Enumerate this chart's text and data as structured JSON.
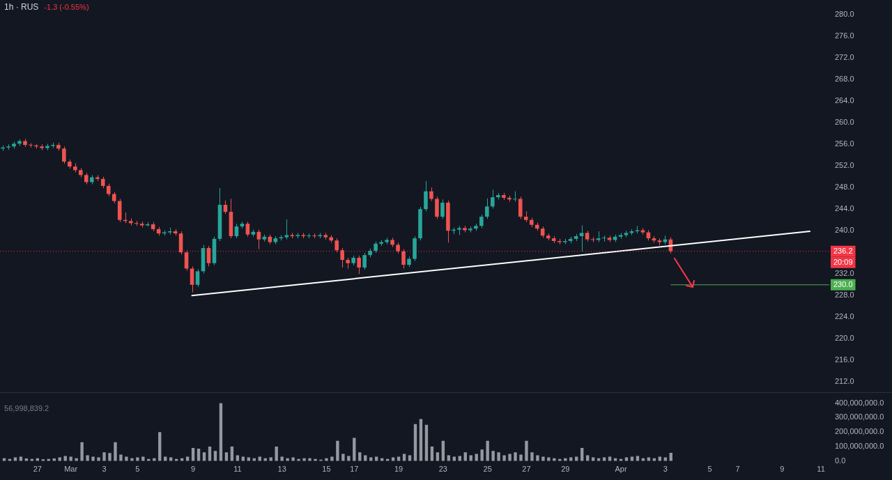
{
  "chart_data": [
    {
      "type": "candlestick",
      "title": "1h · RUS",
      "subtitle": "-1.3 (-0.55%)",
      "ohlc": [
        [
          255.2,
          255.8,
          254.8,
          255.4
        ],
        [
          255.4,
          256.0,
          255.0,
          255.6
        ],
        [
          255.6,
          256.5,
          255.2,
          256.1
        ],
        [
          256.1,
          256.9,
          255.7,
          256.6
        ],
        [
          256.6,
          257.0,
          255.5,
          255.9
        ],
        [
          255.9,
          256.2,
          255.4,
          255.8
        ],
        [
          255.8,
          256.0,
          255.2,
          255.6
        ],
        [
          255.6,
          256.0,
          254.9,
          255.3
        ],
        [
          255.3,
          256.1,
          254.9,
          255.7
        ],
        [
          255.7,
          256.3,
          255.3,
          255.9
        ],
        [
          255.9,
          256.3,
          254.8,
          255.2
        ],
        [
          255.2,
          255.6,
          252.4,
          252.8
        ],
        [
          252.8,
          253.2,
          251.5,
          251.9
        ],
        [
          251.9,
          252.5,
          250.8,
          251.2
        ],
        [
          251.2,
          251.6,
          249.9,
          250.3
        ],
        [
          250.3,
          250.7,
          248.6,
          249.0
        ],
        [
          249.0,
          250.3,
          248.6,
          249.9
        ],
        [
          249.9,
          250.3,
          249.2,
          249.6
        ],
        [
          249.6,
          250.0,
          247.9,
          248.3
        ],
        [
          248.3,
          248.7,
          246.4,
          246.8
        ],
        [
          246.8,
          247.2,
          245.1,
          245.5
        ],
        [
          245.5,
          245.9,
          241.6,
          242.0
        ],
        [
          242.0,
          243.4,
          241.4,
          241.8
        ],
        [
          241.8,
          242.3,
          241.0,
          241.4
        ],
        [
          241.4,
          241.8,
          240.9,
          241.3
        ],
        [
          241.3,
          241.7,
          240.6,
          241.0
        ],
        [
          241.0,
          241.6,
          240.8,
          241.2
        ],
        [
          241.2,
          241.6,
          239.9,
          240.3
        ],
        [
          240.3,
          240.7,
          239.1,
          239.5
        ],
        [
          239.5,
          240.1,
          239.1,
          239.7
        ],
        [
          239.7,
          240.6,
          239.3,
          239.9
        ],
        [
          239.9,
          240.3,
          239.1,
          239.5
        ],
        [
          239.5,
          239.9,
          235.6,
          236.0
        ],
        [
          236.0,
          236.4,
          232.6,
          233.0
        ],
        [
          233.0,
          233.4,
          228.6,
          230.0
        ],
        [
          230.0,
          232.9,
          229.6,
          232.5
        ],
        [
          232.5,
          237.4,
          232.1,
          236.8
        ],
        [
          236.8,
          237.2,
          233.4,
          234.0
        ],
        [
          234.0,
          238.9,
          233.6,
          238.5
        ],
        [
          238.5,
          247.9,
          238.1,
          244.8
        ],
        [
          244.8,
          245.6,
          243.1,
          243.5
        ],
        [
          243.5,
          245.9,
          238.6,
          239.0
        ],
        [
          239.0,
          241.3,
          238.6,
          240.8
        ],
        [
          240.8,
          241.7,
          240.4,
          241.3
        ],
        [
          241.3,
          241.7,
          238.9,
          239.3
        ],
        [
          239.3,
          240.2,
          238.9,
          239.8
        ],
        [
          239.8,
          240.2,
          236.6,
          238.4
        ],
        [
          238.4,
          239.3,
          238.0,
          238.9
        ],
        [
          238.9,
          239.3,
          237.5,
          237.9
        ],
        [
          237.9,
          239.0,
          237.5,
          238.6
        ],
        [
          238.6,
          239.2,
          238.2,
          238.8
        ],
        [
          238.8,
          242.1,
          238.4,
          239.2
        ],
        [
          239.2,
          239.6,
          238.6,
          239.0
        ],
        [
          239.0,
          239.6,
          238.6,
          239.2
        ],
        [
          239.2,
          239.6,
          238.6,
          239.0
        ],
        [
          239.0,
          239.5,
          238.6,
          239.1
        ],
        [
          239.1,
          239.5,
          238.6,
          239.0
        ],
        [
          239.0,
          239.6,
          238.6,
          239.2
        ],
        [
          239.2,
          239.6,
          238.4,
          238.8
        ],
        [
          238.8,
          239.2,
          237.8,
          238.2
        ],
        [
          238.2,
          238.6,
          236.0,
          236.4
        ],
        [
          236.4,
          236.8,
          233.2,
          234.6
        ],
        [
          234.6,
          235.0,
          233.0,
          234.0
        ],
        [
          234.0,
          235.4,
          233.6,
          235.0
        ],
        [
          235.0,
          235.4,
          232.0,
          233.2
        ],
        [
          233.2,
          235.9,
          232.8,
          235.5
        ],
        [
          235.5,
          236.7,
          235.1,
          236.3
        ],
        [
          236.3,
          238.0,
          235.9,
          237.6
        ],
        [
          237.6,
          238.3,
          237.2,
          237.9
        ],
        [
          237.9,
          238.7,
          237.5,
          238.3
        ],
        [
          238.3,
          238.7,
          237.0,
          237.4
        ],
        [
          237.4,
          237.8,
          235.8,
          236.2
        ],
        [
          236.2,
          236.6,
          233.0,
          233.7
        ],
        [
          233.7,
          235.2,
          233.3,
          234.8
        ],
        [
          234.8,
          239.0,
          234.4,
          238.6
        ],
        [
          238.6,
          244.4,
          238.2,
          244.0
        ],
        [
          244.0,
          249.2,
          243.6,
          247.3
        ],
        [
          247.3,
          248.0,
          245.5,
          245.9
        ],
        [
          245.9,
          246.3,
          242.2,
          242.6
        ],
        [
          242.6,
          245.8,
          242.2,
          245.2
        ],
        [
          245.2,
          245.6,
          237.8,
          240.0
        ],
        [
          240.0,
          240.6,
          239.4,
          240.2
        ],
        [
          240.2,
          240.9,
          239.2,
          240.5
        ],
        [
          240.5,
          240.9,
          239.7,
          240.1
        ],
        [
          240.1,
          240.8,
          239.7,
          240.4
        ],
        [
          240.4,
          241.3,
          240.0,
          240.9
        ],
        [
          240.9,
          243.0,
          240.5,
          242.6
        ],
        [
          242.6,
          246.0,
          242.2,
          244.5
        ],
        [
          244.5,
          247.6,
          244.1,
          246.2
        ],
        [
          246.2,
          247.0,
          245.8,
          246.6
        ],
        [
          246.6,
          247.0,
          245.7,
          246.1
        ],
        [
          246.1,
          246.5,
          245.4,
          245.8
        ],
        [
          245.8,
          247.3,
          245.4,
          245.9
        ],
        [
          245.9,
          246.3,
          242.2,
          242.6
        ],
        [
          242.6,
          243.6,
          241.6,
          242.0
        ],
        [
          242.0,
          242.4,
          240.7,
          241.1
        ],
        [
          241.1,
          241.5,
          240.0,
          240.4
        ],
        [
          240.4,
          240.8,
          238.7,
          239.1
        ],
        [
          239.1,
          239.5,
          238.2,
          238.6
        ],
        [
          238.6,
          239.0,
          237.7,
          238.1
        ],
        [
          238.1,
          238.5,
          237.5,
          237.9
        ],
        [
          237.9,
          238.5,
          237.5,
          238.1
        ],
        [
          238.1,
          238.9,
          237.7,
          238.5
        ],
        [
          238.5,
          239.4,
          238.1,
          239.0
        ],
        [
          239.0,
          241.0,
          236.2,
          239.6
        ],
        [
          239.6,
          240.0,
          238.0,
          238.4
        ],
        [
          238.4,
          238.8,
          237.9,
          238.3
        ],
        [
          238.3,
          239.9,
          237.9,
          238.6
        ],
        [
          238.6,
          239.1,
          238.0,
          238.7
        ],
        [
          238.7,
          239.1,
          237.9,
          238.3
        ],
        [
          238.3,
          239.3,
          237.9,
          238.9
        ],
        [
          238.9,
          239.6,
          238.5,
          239.2
        ],
        [
          239.2,
          240.0,
          238.8,
          239.6
        ],
        [
          239.6,
          240.3,
          239.2,
          239.9
        ],
        [
          239.9,
          240.9,
          239.5,
          240.1
        ],
        [
          240.1,
          240.5,
          239.3,
          239.7
        ],
        [
          239.7,
          240.1,
          238.2,
          238.6
        ],
        [
          238.6,
          239.0,
          237.8,
          238.2
        ],
        [
          238.2,
          238.6,
          237.3,
          237.9
        ],
        [
          237.9,
          239.1,
          237.5,
          238.4
        ],
        [
          238.4,
          238.8,
          235.8,
          236.2
        ],
        null,
        null,
        null,
        null,
        null,
        null,
        null,
        null,
        null,
        null,
        null,
        null,
        null,
        null,
        null,
        null,
        null,
        null,
        null,
        null,
        null,
        null,
        null,
        null,
        null,
        null,
        null,
        null
      ],
      "colors": [
        "#26a69a",
        "#26a69a",
        "#26a69a",
        "#26a69a",
        "#ef5350",
        "#ef5350",
        "#ef5350",
        "#ef5350",
        "#26a69a",
        "#26a69a",
        "#ef5350",
        "#ef5350",
        "#ef5350",
        "#ef5350",
        "#ef5350",
        "#ef5350",
        "#26a69a",
        "#ef5350",
        "#ef5350",
        "#ef5350",
        "#ef5350",
        "#ef5350",
        "#ef5350",
        "#ef5350",
        "#ef5350",
        "#ef5350",
        "#26a69a",
        "#ef5350",
        "#ef5350",
        "#26a69a",
        "#26a69a",
        "#ef5350",
        "#ef5350",
        "#ef5350",
        "#ef5350",
        "#26a69a",
        "#26a69a",
        "#ef5350",
        "#26a69a",
        "#26a69a",
        "#ef5350",
        "#ef5350",
        "#26a69a",
        "#26a69a",
        "#ef5350",
        "#26a69a",
        "#ef5350",
        "#26a69a",
        "#ef5350",
        "#26a69a",
        "#26a69a",
        "#26a69a",
        "#ef5350",
        "#26a69a",
        "#ef5350",
        "#26a69a",
        "#ef5350",
        "#26a69a",
        "#ef5350",
        "#ef5350",
        "#ef5350",
        "#ef5350",
        "#ef5350",
        "#26a69a",
        "#ef5350",
        "#26a69a",
        "#26a69a",
        "#26a69a",
        "#26a69a",
        "#26a69a",
        "#ef5350",
        "#ef5350",
        "#ef5350",
        "#26a69a",
        "#26a69a",
        "#26a69a",
        "#26a69a",
        "#ef5350",
        "#ef5350",
        "#26a69a",
        "#ef5350",
        "#26a69a",
        "#26a69a",
        "#ef5350",
        "#26a69a",
        "#26a69a",
        "#26a69a",
        "#26a69a",
        "#26a69a",
        "#26a69a",
        "#ef5350",
        "#ef5350",
        "#26a69a",
        "#ef5350",
        "#ef5350",
        "#ef5350",
        "#ef5350",
        "#ef5350",
        "#ef5350",
        "#ef5350",
        "#ef5350",
        "#26a69a",
        "#26a69a",
        "#26a69a",
        "#26a69a",
        "#ef5350",
        "#ef5350",
        "#26a69a",
        "#26a69a",
        "#ef5350",
        "#26a69a",
        "#26a69a",
        "#26a69a",
        "#26a69a",
        "#26a69a",
        "#ef5350",
        "#ef5350",
        "#ef5350",
        "#ef5350",
        "#26a69a",
        "#ef5350",
        null,
        null,
        null,
        null,
        null,
        null,
        null,
        null,
        null,
        null,
        null,
        null,
        null,
        null,
        null,
        null,
        null,
        null,
        null,
        null,
        null,
        null,
        null,
        null,
        null,
        null,
        null,
        null
      ],
      "series": [
        {
          "type": "line",
          "color": "#ffffff",
          "values": [
            null,
            null,
            null,
            null,
            null,
            null,
            null,
            null,
            null,
            null,
            null,
            null,
            null,
            null,
            null,
            null,
            null,
            null,
            null,
            null,
            null,
            null,
            null,
            null,
            null,
            null,
            null,
            null,
            null,
            null,
            null,
            null,
            null,
            null,
            228.0,
            null,
            null,
            null,
            null,
            null,
            null,
            null,
            null,
            null,
            null,
            null,
            null,
            null,
            null,
            null,
            null,
            null,
            null,
            null,
            null,
            null,
            null,
            null,
            null,
            null,
            null,
            null,
            null,
            null,
            null,
            null,
            null,
            null,
            null,
            null,
            null,
            null,
            null,
            null,
            null,
            null,
            null,
            null,
            null,
            null,
            null,
            null,
            null,
            null,
            null,
            null,
            null,
            null,
            null,
            null,
            null,
            null,
            null,
            null,
            null,
            null,
            null,
            null,
            null,
            null,
            null,
            null,
            null,
            null,
            null,
            null,
            null,
            null,
            null,
            null,
            null,
            null,
            null,
            null,
            null,
            null,
            null,
            null,
            null,
            null,
            null,
            null,
            null,
            null,
            null,
            null,
            null,
            null,
            null,
            null,
            null,
            null,
            null,
            null,
            null,
            null,
            null,
            null,
            null,
            null,
            null,
            null,
            null,
            null,
            null,
            239.9,
            null,
            null,
            null
          ]
        }
      ],
      "ylim": [
        212,
        280
      ],
      "yticks": [
        {
          "value": 212,
          "label": "212.0"
        },
        {
          "value": 216,
          "label": "216.0"
        },
        {
          "value": 220,
          "label": "220.0"
        },
        {
          "value": 224,
          "label": "224.0"
        },
        {
          "value": 228,
          "label": "228.0"
        },
        {
          "value": 232,
          "label": "232.0"
        },
        {
          "value": 240,
          "label": "240.0"
        },
        {
          "value": 244,
          "label": "244.0"
        },
        {
          "value": 248,
          "label": "248.0"
        },
        {
          "value": 252,
          "label": "252.0"
        },
        {
          "value": 256,
          "label": "256.0"
        },
        {
          "value": 260,
          "label": "260.0"
        },
        {
          "value": 264,
          "label": "264.0"
        },
        {
          "value": 268,
          "label": "268.0"
        },
        {
          "value": 272,
          "label": "272.0"
        },
        {
          "value": 276,
          "label": "276.0"
        },
        {
          "value": 280,
          "label": "280.0"
        }
      ],
      "ref_lines": [
        {
          "axis": "y",
          "value": 236.2,
          "label": "236.2",
          "color": "#f23645",
          "line_style": "dotted"
        },
        {
          "axis": "y",
          "value": 230.0,
          "label": "230.0",
          "color": "#4caf50",
          "line_style": "solid"
        }
      ],
      "annotations": [
        "20:09"
      ],
      "tick_labels": "y"
    },
    {
      "type": "bar",
      "categories": [
        null,
        null,
        null,
        null,
        null,
        null,
        "27",
        null,
        null,
        null,
        null,
        null,
        "Mar",
        null,
        null,
        null,
        null,
        null,
        "3",
        null,
        null,
        null,
        null,
        null,
        "5",
        null,
        null,
        null,
        null,
        null,
        null,
        null,
        null,
        null,
        "9",
        null,
        null,
        null,
        null,
        null,
        null,
        null,
        "11",
        null,
        null,
        null,
        null,
        null,
        null,
        null,
        "13",
        null,
        null,
        null,
        null,
        null,
        null,
        null,
        "15",
        null,
        null,
        null,
        null,
        "17",
        null,
        null,
        null,
        null,
        null,
        null,
        null,
        "19",
        null,
        null,
        null,
        null,
        null,
        null,
        null,
        "23",
        null,
        null,
        null,
        null,
        null,
        null,
        null,
        "25",
        null,
        null,
        null,
        null,
        null,
        null,
        "27",
        null,
        null,
        null,
        null,
        null,
        null,
        "29",
        null,
        null,
        null,
        null,
        null,
        null,
        null,
        null,
        null,
        "Apr",
        null,
        null,
        null,
        null,
        null,
        null,
        null,
        "3",
        null,
        null,
        null,
        null,
        null,
        null,
        null,
        "5",
        null,
        null,
        null,
        null,
        "7",
        null,
        null,
        null,
        null,
        null,
        null,
        null,
        "9",
        null,
        null,
        null,
        null,
        null,
        null,
        "11",
        null
      ],
      "values": [
        20000000,
        15000000,
        25000000,
        30000000,
        18000000,
        15000000,
        20000000,
        12000000,
        15000000,
        18000000,
        25000000,
        35000000,
        30000000,
        20000000,
        130000000,
        40000000,
        30000000,
        25000000,
        60000000,
        55000000,
        130000000,
        45000000,
        30000000,
        20000000,
        25000000,
        30000000,
        15000000,
        20000000,
        200000000,
        30000000,
        25000000,
        15000000,
        20000000,
        30000000,
        90000000,
        85000000,
        60000000,
        100000000,
        70000000,
        400000000,
        60000000,
        100000000,
        40000000,
        30000000,
        25000000,
        20000000,
        30000000,
        20000000,
        25000000,
        100000000,
        30000000,
        20000000,
        25000000,
        15000000,
        20000000,
        20000000,
        15000000,
        10000000,
        20000000,
        30000000,
        140000000,
        50000000,
        35000000,
        160000000,
        60000000,
        40000000,
        25000000,
        30000000,
        20000000,
        15000000,
        25000000,
        30000000,
        50000000,
        40000000,
        255000000,
        290000000,
        250000000,
        100000000,
        60000000,
        140000000,
        40000000,
        30000000,
        35000000,
        60000000,
        40000000,
        50000000,
        80000000,
        140000000,
        70000000,
        60000000,
        40000000,
        50000000,
        60000000,
        45000000,
        140000000,
        60000000,
        40000000,
        30000000,
        25000000,
        20000000,
        15000000,
        20000000,
        25000000,
        30000000,
        90000000,
        40000000,
        25000000,
        20000000,
        25000000,
        30000000,
        20000000,
        15000000,
        25000000,
        30000000,
        35000000,
        20000000,
        25000000,
        20000000,
        30000000,
        25000000,
        56998839.2,
        null,
        null,
        null,
        null,
        null,
        null,
        null,
        null,
        null,
        null,
        null,
        null,
        null,
        null,
        null,
        null,
        null,
        null,
        null,
        null,
        null,
        null,
        null,
        null,
        null,
        null,
        null,
        null
      ],
      "color": "#9598a1",
      "ylim": [
        0,
        400000000
      ],
      "yticks": [
        {
          "value": 0,
          "label": "0.0"
        },
        {
          "value": 100000000,
          "label": "100,000,000.0"
        },
        {
          "value": 200000000,
          "label": "200,000,000.0"
        },
        {
          "value": 300000000,
          "label": "300,000,000.0"
        },
        {
          "value": 400000000,
          "label": "400,000,000.0"
        }
      ],
      "annotations": [
        "56,998,839.2"
      ]
    }
  ]
}
